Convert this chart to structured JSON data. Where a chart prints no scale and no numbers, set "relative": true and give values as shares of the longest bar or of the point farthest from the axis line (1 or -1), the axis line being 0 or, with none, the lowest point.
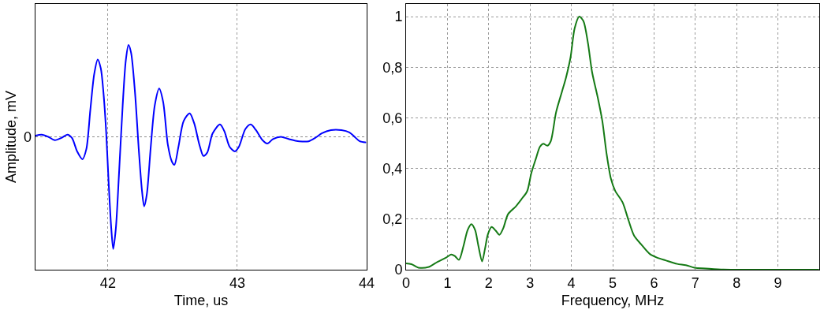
{
  "chart_data": [
    {
      "type": "line",
      "xlabel": "Time, us",
      "ylabel": "Amplitude, mV",
      "relative": true,
      "color": "#0000ff",
      "grid": "x",
      "xlim": [
        41.44,
        44
      ],
      "xticks": [
        42,
        43,
        44
      ],
      "ref_lines": [
        {
          "axis": "y",
          "value": 0,
          "label": "0",
          "line_style": "dotted",
          "color": "#8c8c8c"
        }
      ],
      "x": [
        41.441,
        41.488,
        41.539,
        41.589,
        41.64,
        41.687,
        41.722,
        41.762,
        41.803,
        41.833,
        41.864,
        41.894,
        41.921,
        41.945,
        41.965,
        41.986,
        42.006,
        42.026,
        42.041,
        42.061,
        42.087,
        42.114,
        42.138,
        42.159,
        42.179,
        42.209,
        42.24,
        42.264,
        42.28,
        42.301,
        42.331,
        42.362,
        42.396,
        42.427,
        42.463,
        42.494,
        42.514,
        42.545,
        42.585,
        42.632,
        42.667,
        42.707,
        42.738,
        42.768,
        42.809,
        42.866,
        42.9,
        42.941,
        42.982,
        43.012,
        43.063,
        43.104,
        43.144,
        43.195,
        43.232,
        43.276,
        43.337,
        43.398,
        43.48,
        43.551,
        43.602,
        43.652,
        43.724,
        43.805,
        43.866,
        43.907,
        43.947,
        43.99
      ],
      "values": [
        0.01,
        0.02,
        0,
        -0.03,
        -0.01,
        0.02,
        -0.01,
        -0.13,
        -0.2,
        -0.11,
        0.24,
        0.56,
        0.69,
        0.61,
        0.4,
        0.05,
        -0.42,
        -0.82,
        -1,
        -0.82,
        -0.3,
        0.28,
        0.68,
        0.82,
        0.75,
        0.4,
        -0.14,
        -0.49,
        -0.62,
        -0.51,
        -0.09,
        0.28,
        0.43,
        0.31,
        -0.07,
        -0.22,
        -0.25,
        -0.09,
        0.14,
        0.21,
        0.12,
        -0.07,
        -0.17,
        -0.14,
        0.03,
        0.11,
        0.05,
        -0.09,
        -0.13,
        -0.09,
        0.07,
        0.11,
        0.06,
        -0.03,
        -0.06,
        -0.02,
        0,
        -0.02,
        -0.04,
        -0.04,
        -0.01,
        0.03,
        0.06,
        0.06,
        0.04,
        0,
        -0.04,
        -0.05
      ]
    },
    {
      "type": "line",
      "xlabel": "Frequency, MHz",
      "color": "#157a15",
      "grid": true,
      "xlim": [
        0,
        10
      ],
      "xticks": [
        0,
        1,
        2,
        3,
        4,
        5,
        6,
        7,
        8,
        9
      ],
      "ylim": [
        0,
        1.05
      ],
      "yticks": [
        0,
        {
          "value": 0.2,
          "label": "0,2"
        },
        {
          "value": 0.4,
          "label": "0,4"
        },
        {
          "value": 0.6,
          "label": "0,6"
        },
        {
          "value": 0.8,
          "label": "0,8"
        },
        1
      ],
      "x": [
        0,
        0.13,
        0.3,
        0.55,
        0.76,
        0.97,
        1.09,
        1.18,
        1.28,
        1.39,
        1.49,
        1.58,
        1.67,
        1.75,
        1.84,
        1.91,
        1.98,
        2.07,
        2.17,
        2.26,
        2.35,
        2.47,
        2.65,
        2.79,
        2.93,
        3.03,
        3.14,
        3.24,
        3.32,
        3.42,
        3.5,
        3.63,
        3.77,
        3.87,
        3.98,
        4.08,
        4.19,
        4.29,
        4.4,
        4.5,
        4.64,
        4.75,
        4.85,
        4.96,
        5.06,
        5.24,
        5.38,
        5.52,
        5.69,
        5.9,
        6.07,
        6.28,
        6.56,
        6.77,
        6.98,
        7.26,
        7.68,
        8.24,
        9.98
      ],
      "values": [
        0.025,
        0.022,
        0.008,
        0.011,
        0.031,
        0.048,
        0.06,
        0.054,
        0.039,
        0.094,
        0.157,
        0.18,
        0.157,
        0.094,
        0.033,
        0.083,
        0.14,
        0.169,
        0.154,
        0.138,
        0.163,
        0.22,
        0.249,
        0.278,
        0.31,
        0.381,
        0.438,
        0.486,
        0.498,
        0.49,
        0.507,
        0.622,
        0.702,
        0.759,
        0.839,
        0.954,
        1,
        0.983,
        0.897,
        0.782,
        0.679,
        0.587,
        0.461,
        0.358,
        0.312,
        0.266,
        0.197,
        0.134,
        0.1,
        0.062,
        0.048,
        0.037,
        0.023,
        0.018,
        0.008,
        0.005,
        0.001,
        0,
        0
      ]
    }
  ]
}
